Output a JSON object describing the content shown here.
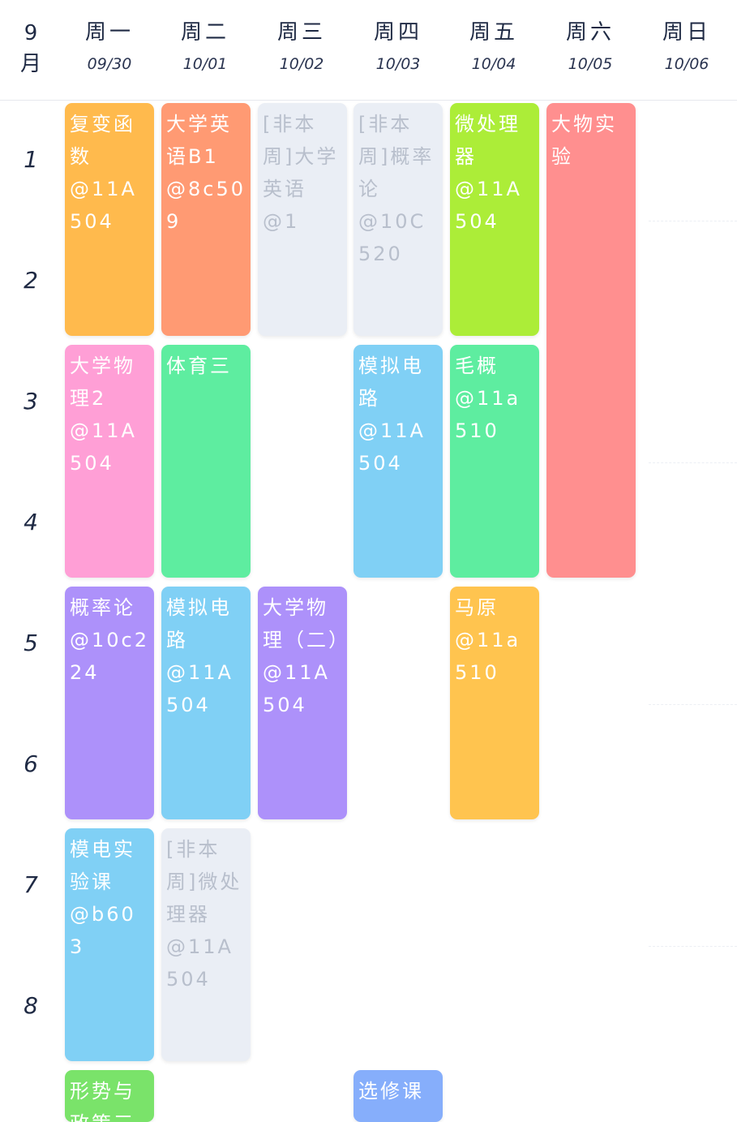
{
  "header": {
    "month": "9\n月",
    "days": [
      {
        "name": "周一",
        "date": "09/30"
      },
      {
        "name": "周二",
        "date": "10/01"
      },
      {
        "name": "周三",
        "date": "10/02"
      },
      {
        "name": "周四",
        "date": "10/03"
      },
      {
        "name": "周五",
        "date": "10/04"
      },
      {
        "name": "周六",
        "date": "10/05"
      },
      {
        "name": "周日",
        "date": "10/06"
      }
    ]
  },
  "periods": [
    "1",
    "2",
    "3",
    "4",
    "5",
    "6",
    "7",
    "8"
  ],
  "courses": [
    {
      "name": "复变函数",
      "room": "@11A504",
      "color": "#ffba4d",
      "day": "周一",
      "start_period": 1,
      "end_period": 2
    },
    {
      "name": "大学英语B1",
      "room": "@8c509",
      "color": "#ff9a73",
      "day": "周二",
      "start_period": 1,
      "end_period": 2
    },
    {
      "name": "[非本周]大学英语",
      "room": "@1",
      "color": "#eaeef5",
      "day": "周三",
      "start_period": 1,
      "end_period": 2,
      "muted": true
    },
    {
      "name": "[非本周]概率论",
      "room": "@10C520",
      "color": "#eaeef5",
      "day": "周四",
      "start_period": 1,
      "end_period": 2,
      "muted": true
    },
    {
      "name": "微处理器",
      "room": "@11A504",
      "color": "#aced38",
      "day": "周五",
      "start_period": 1,
      "end_period": 2
    },
    {
      "name": "大物实验",
      "room": "",
      "color": "#ff8f8f",
      "day": "周六",
      "start_period": 1,
      "end_period": 4
    },
    {
      "name": "大学物理2",
      "room": "@11A504",
      "color": "#ff9fd6",
      "day": "周一",
      "start_period": 3,
      "end_period": 4
    },
    {
      "name": "体育三",
      "room": "",
      "color": "#5eeda0",
      "day": "周二",
      "start_period": 3,
      "end_period": 4
    },
    {
      "name": "模拟电路",
      "room": "@11A504",
      "color": "#80d0f5",
      "day": "周四",
      "start_period": 3,
      "end_period": 4
    },
    {
      "name": "毛概",
      "room": "@11a510",
      "color": "#5eeda0",
      "day": "周五",
      "start_period": 3,
      "end_period": 4
    },
    {
      "name": "概率论",
      "room": "@10c224",
      "color": "#ad91fa",
      "day": "周一",
      "start_period": 5,
      "end_period": 6
    },
    {
      "name": "模拟电路",
      "room": "@11A504",
      "color": "#80d0f5",
      "day": "周二",
      "start_period": 5,
      "end_period": 6
    },
    {
      "name": "大学物理（二）",
      "room": "@11A504",
      "color": "#ad91fa",
      "day": "周三",
      "start_period": 5,
      "end_period": 6
    },
    {
      "name": "马原",
      "room": "@11a510",
      "color": "#ffc44f",
      "day": "周五",
      "start_period": 5,
      "end_period": 6
    },
    {
      "name": "模电实验课",
      "room": "@b603",
      "color": "#80d0f5",
      "day": "周一",
      "start_period": 7,
      "end_period": 8
    },
    {
      "name": "[非本周]微处理器",
      "room": "@11A504",
      "color": "#eaeef5",
      "day": "周二",
      "start_period": 7,
      "end_period": 8,
      "muted": true
    },
    {
      "name": "形势与政策三",
      "room": "",
      "color": "#7ae36a",
      "day": "周一",
      "start_period": 9,
      "end_period": 10
    },
    {
      "name": "选修课",
      "room": "",
      "color": "#86aefb",
      "day": "周四",
      "start_period": 9,
      "end_period": 10
    }
  ]
}
